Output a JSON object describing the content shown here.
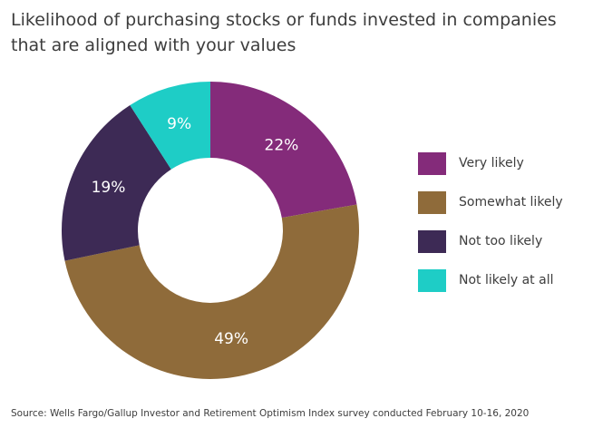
{
  "title": "Likelihood of purchasing stocks or funds invested in companies that are aligned with your values",
  "source": "Source: Wells Fargo/Gallup Investor and Retirement Optimism Index survey conducted February 10-16, 2020",
  "chart_data": {
    "type": "pie",
    "donut": true,
    "categories": [
      "Very likely",
      "Somewhat likely",
      "Not too likely",
      "Not likely at all"
    ],
    "values": [
      22,
      49,
      19,
      9
    ],
    "labels": [
      "22%",
      "49%",
      "19%",
      "9%"
    ],
    "colors": [
      "#842b7a",
      "#8f6b3a",
      "#3d2a55",
      "#1ecdc6"
    ],
    "legend_position": "right"
  }
}
